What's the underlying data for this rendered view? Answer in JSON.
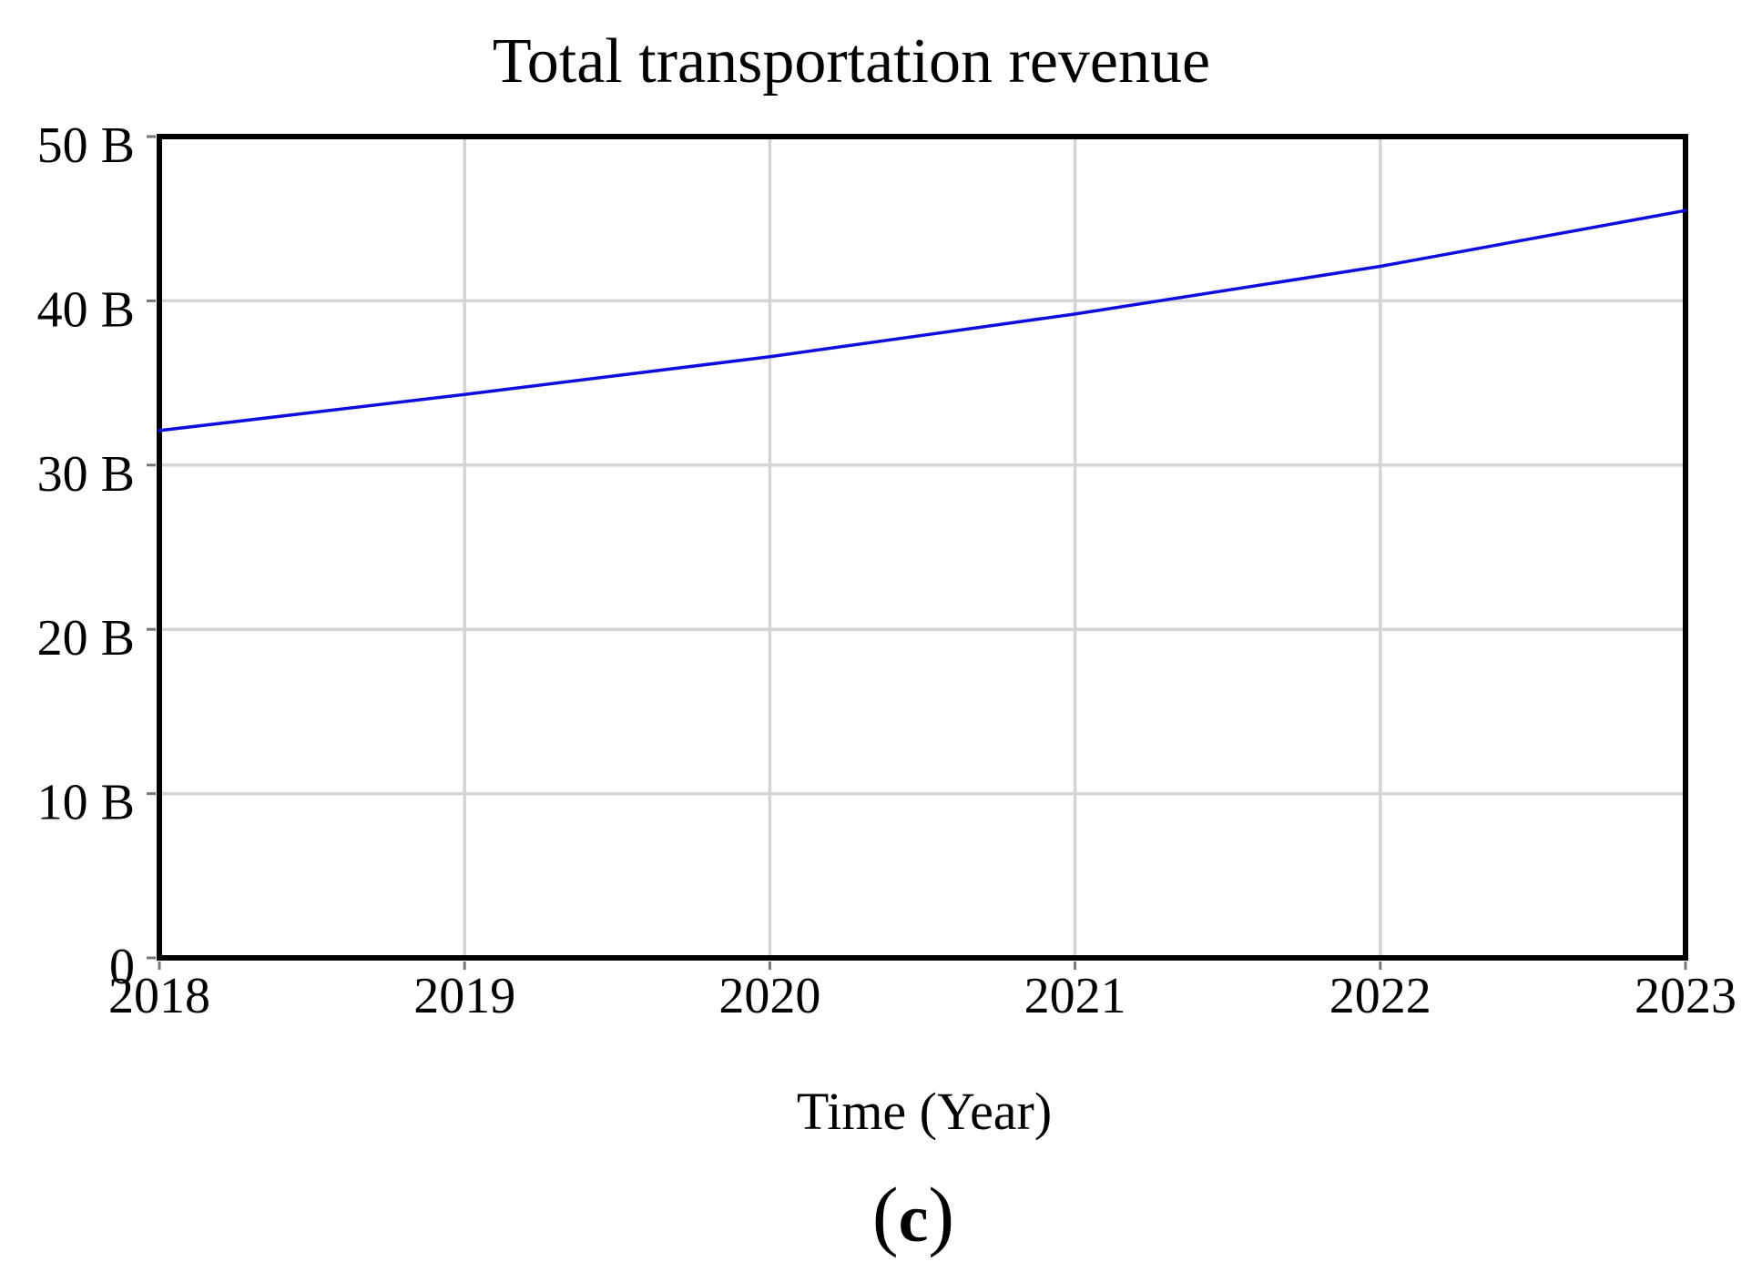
{
  "chart_data": {
    "type": "line",
    "title": "Total transportation revenue",
    "xlabel": "Time (Year)",
    "ylabel": "",
    "x": [
      2018,
      2019,
      2020,
      2021,
      2022,
      2023
    ],
    "x_tick_labels": [
      "2018",
      "2019",
      "2020",
      "2021",
      "2022",
      "2023"
    ],
    "xlim": [
      2018,
      2023
    ],
    "y_ticks": [
      0,
      10,
      20,
      30,
      40,
      50
    ],
    "y_tick_labels": [
      "0",
      "10 B",
      "20 B",
      "30 B",
      "40 B",
      "50 B"
    ],
    "ylim": [
      0,
      50
    ],
    "grid": true,
    "legend": "none",
    "series": [
      {
        "name": "Total transportation revenue",
        "values": [
          32.1,
          34.3,
          36.6,
          39.2,
          42.1,
          45.5
        ],
        "color": "#0d0de0"
      }
    ]
  },
  "caption": {
    "open": "(",
    "letter": "c",
    "close": ")"
  },
  "colors": {
    "background": "#ffffff",
    "grid": "#d4d4d4",
    "axis_border": "#000000",
    "tick": "#777777",
    "text": "#000000",
    "line": "#0d0de0"
  }
}
